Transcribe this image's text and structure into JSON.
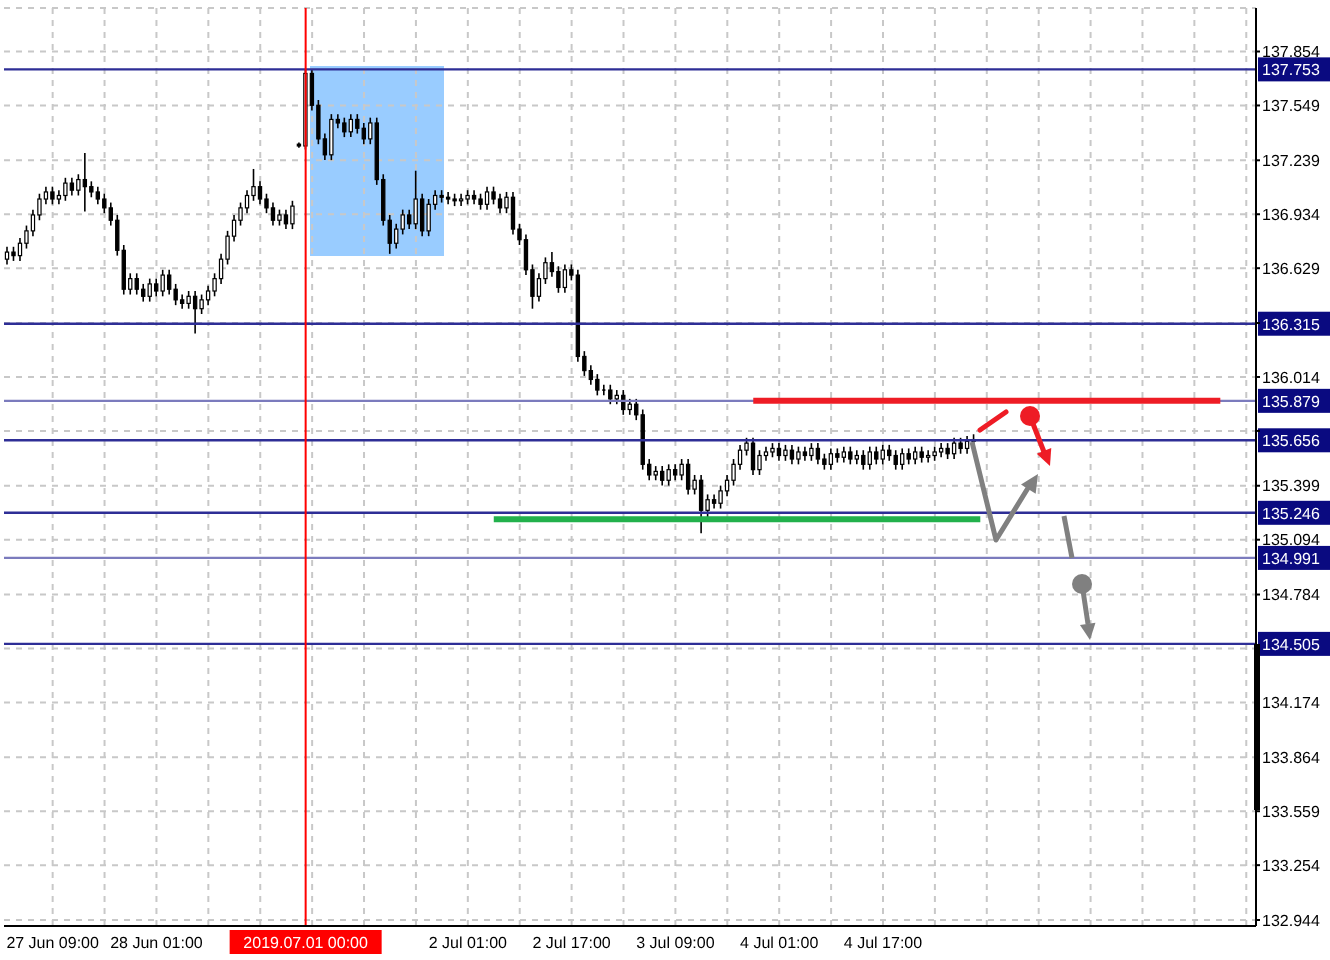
{
  "chart_data": {
    "type": "candlestick",
    "categories": [
      null,
      null,
      null,
      null,
      null,
      null,
      null,
      "27 Jun 09:00",
      null,
      null,
      null,
      null,
      null,
      null,
      null,
      null,
      null,
      null,
      null,
      null,
      null,
      null,
      null,
      "28 Jun 01:00",
      null,
      null,
      null,
      null,
      null,
      null,
      null,
      null,
      null,
      null,
      null,
      null,
      null,
      null,
      null,
      null,
      null,
      null,
      null,
      null,
      null,
      null,
      "2019.07.01 00:00",
      null,
      null,
      null,
      null,
      null,
      null,
      null,
      null,
      null,
      null,
      null,
      null,
      null,
      null,
      null,
      null,
      null,
      null,
      null,
      null,
      null,
      null,
      null,
      null,
      "2 Jul 01:00",
      null,
      null,
      null,
      null,
      null,
      null,
      null,
      null,
      null,
      null,
      null,
      null,
      null,
      null,
      null,
      "2 Jul 17:00",
      null,
      null,
      null,
      null,
      null,
      null,
      null,
      null,
      null,
      null,
      null,
      null,
      null,
      null,
      null,
      "3 Jul 09:00",
      null,
      null,
      null,
      null,
      null,
      null,
      null,
      null,
      null,
      null,
      null,
      null,
      null,
      null,
      null,
      "4 Jul 01:00",
      null,
      null,
      null,
      null,
      null,
      null,
      null,
      null,
      null,
      null,
      null,
      null,
      null,
      null,
      null,
      "4 Jul 17:00",
      null,
      null,
      null,
      null,
      null,
      null,
      null,
      null,
      null,
      null,
      null,
      null,
      null,
      null,
      null,
      null,
      null,
      null,
      null,
      null,
      null,
      null,
      null,
      null,
      null,
      null,
      null,
      null,
      null,
      null,
      null,
      null,
      null,
      null,
      null,
      null,
      null,
      null,
      null,
      null,
      null,
      null,
      null,
      null,
      null,
      null,
      null,
      null,
      null,
      null,
      null,
      null,
      null,
      null,
      null,
      null,
      null
    ],
    "ohlc": [
      [
        136.68,
        136.75,
        136.65,
        136.72
      ],
      [
        136.72,
        136.75,
        136.67,
        136.7
      ],
      [
        136.7,
        136.8,
        136.67,
        136.77
      ],
      [
        136.77,
        136.87,
        136.74,
        136.84
      ],
      [
        136.84,
        136.96,
        136.81,
        136.93
      ],
      [
        136.93,
        137.05,
        136.9,
        137.02
      ],
      [
        137.02,
        137.09,
        136.99,
        137.06
      ],
      [
        137.06,
        137.09,
        136.99,
        137.02
      ],
      [
        137.02,
        137.07,
        136.99,
        137.04
      ],
      [
        137.04,
        137.14,
        137.01,
        137.11
      ],
      [
        137.11,
        137.14,
        137.04,
        137.07
      ],
      [
        137.07,
        137.16,
        137.04,
        137.13
      ],
      [
        137.13,
        137.28,
        136.95,
        137.09
      ],
      [
        137.09,
        137.12,
        137.03,
        137.06
      ],
      [
        137.06,
        137.09,
        136.99,
        137.02
      ],
      [
        137.02,
        137.05,
        136.94,
        136.97
      ],
      [
        136.97,
        137.0,
        136.87,
        136.9
      ],
      [
        136.9,
        136.93,
        136.7,
        136.73
      ],
      [
        136.73,
        136.76,
        136.48,
        136.51
      ],
      [
        136.51,
        136.6,
        136.48,
        136.57
      ],
      [
        136.57,
        136.6,
        136.48,
        136.51
      ],
      [
        136.51,
        136.54,
        136.44,
        136.47
      ],
      [
        136.47,
        136.57,
        136.44,
        136.54
      ],
      [
        136.54,
        136.57,
        136.47,
        136.5
      ],
      [
        136.5,
        136.62,
        136.47,
        136.59
      ],
      [
        136.59,
        136.62,
        136.48,
        136.51
      ],
      [
        136.51,
        136.54,
        136.42,
        136.45
      ],
      [
        136.45,
        136.48,
        136.4,
        136.43
      ],
      [
        136.43,
        136.5,
        136.4,
        136.47
      ],
      [
        136.47,
        136.5,
        136.26,
        136.4
      ],
      [
        136.4,
        136.48,
        136.37,
        136.45
      ],
      [
        136.45,
        136.53,
        136.42,
        136.5
      ],
      [
        136.5,
        136.6,
        136.47,
        136.57
      ],
      [
        136.57,
        136.71,
        136.54,
        136.68
      ],
      [
        136.68,
        136.84,
        136.65,
        136.81
      ],
      [
        136.81,
        136.93,
        136.78,
        136.9
      ],
      [
        136.9,
        137.0,
        136.87,
        136.97
      ],
      [
        136.97,
        137.07,
        136.94,
        137.04
      ],
      [
        137.04,
        137.19,
        137.01,
        137.09
      ],
      [
        137.09,
        137.12,
        136.99,
        137.02
      ],
      [
        137.02,
        137.05,
        136.94,
        136.97
      ],
      [
        136.97,
        137.0,
        136.87,
        136.9
      ],
      [
        136.9,
        136.96,
        136.87,
        136.93
      ],
      [
        136.93,
        136.96,
        136.85,
        136.88
      ],
      [
        136.88,
        137.01,
        136.85,
        136.98
      ],
      [
        137.33,
        137.34,
        137.31,
        137.32
      ],
      [
        137.32,
        137.75,
        137.3,
        137.73
      ],
      [
        137.73,
        137.75,
        137.52,
        137.55
      ],
      [
        137.55,
        137.58,
        137.33,
        137.36
      ],
      [
        137.36,
        137.39,
        137.24,
        137.27
      ],
      [
        137.27,
        137.5,
        137.24,
        137.47
      ],
      [
        137.47,
        137.5,
        137.42,
        137.45
      ],
      [
        137.45,
        137.48,
        137.37,
        137.4
      ],
      [
        137.4,
        137.5,
        137.37,
        137.47
      ],
      [
        137.47,
        137.5,
        137.39,
        137.42
      ],
      [
        137.42,
        137.45,
        137.33,
        137.36
      ],
      [
        137.36,
        137.48,
        137.33,
        137.45
      ],
      [
        137.45,
        137.48,
        137.1,
        137.13
      ],
      [
        137.13,
        137.16,
        136.87,
        136.9
      ],
      [
        136.9,
        136.93,
        136.71,
        136.77
      ],
      [
        136.77,
        136.88,
        136.74,
        136.85
      ],
      [
        136.85,
        136.96,
        136.82,
        136.93
      ],
      [
        136.93,
        136.96,
        136.85,
        136.88
      ],
      [
        136.88,
        137.18,
        136.85,
        137.02
      ],
      [
        137.02,
        137.05,
        136.81,
        136.84
      ],
      [
        136.84,
        137.02,
        136.81,
        136.99
      ],
      [
        136.99,
        137.07,
        136.96,
        137.04
      ],
      [
        137.04,
        137.07,
        137.0,
        137.03
      ],
      [
        137.03,
        137.06,
        136.99,
        137.02
      ],
      [
        137.02,
        137.05,
        136.98,
        137.01
      ],
      [
        137.01,
        137.05,
        136.98,
        137.02
      ],
      [
        137.02,
        137.07,
        136.99,
        137.04
      ],
      [
        137.04,
        137.07,
        136.99,
        137.02
      ],
      [
        137.02,
        137.05,
        136.96,
        136.99
      ],
      [
        136.99,
        137.09,
        136.96,
        137.06
      ],
      [
        137.06,
        137.09,
        136.99,
        137.02
      ],
      [
        137.02,
        137.05,
        136.94,
        136.97
      ],
      [
        136.97,
        137.06,
        136.94,
        137.03
      ],
      [
        137.03,
        137.06,
        136.82,
        136.85
      ],
      [
        136.85,
        136.88,
        136.76,
        136.79
      ],
      [
        136.79,
        136.82,
        136.59,
        136.62
      ],
      [
        136.62,
        136.65,
        136.4,
        136.47
      ],
      [
        136.47,
        136.6,
        136.44,
        136.57
      ],
      [
        136.57,
        136.69,
        136.54,
        136.66
      ],
      [
        136.66,
        136.72,
        136.58,
        136.61
      ],
      [
        136.61,
        136.64,
        136.49,
        136.52
      ],
      [
        136.52,
        136.65,
        136.49,
        136.62
      ],
      [
        136.62,
        136.65,
        136.56,
        136.59
      ],
      [
        136.59,
        136.62,
        136.1,
        136.13
      ],
      [
        136.13,
        136.16,
        136.02,
        136.05
      ],
      [
        136.05,
        136.08,
        135.97,
        136.0
      ],
      [
        136.0,
        136.03,
        135.91,
        135.94
      ],
      [
        135.94,
        135.97,
        135.91,
        135.94
      ],
      [
        135.94,
        135.97,
        135.86,
        135.89
      ],
      [
        135.89,
        135.94,
        135.86,
        135.91
      ],
      [
        135.91,
        135.94,
        135.8,
        135.83
      ],
      [
        135.83,
        135.89,
        135.8,
        135.86
      ],
      [
        135.86,
        135.89,
        135.77,
        135.8
      ],
      [
        135.8,
        135.83,
        135.49,
        135.52
      ],
      [
        135.52,
        135.55,
        135.43,
        135.46
      ],
      [
        135.46,
        135.51,
        135.43,
        135.48
      ],
      [
        135.48,
        135.51,
        135.4,
        135.43
      ],
      [
        135.43,
        135.52,
        135.4,
        135.49
      ],
      [
        135.49,
        135.52,
        135.43,
        135.46
      ],
      [
        135.46,
        135.55,
        135.43,
        135.52
      ],
      [
        135.52,
        135.55,
        135.35,
        135.38
      ],
      [
        135.38,
        135.46,
        135.35,
        135.43
      ],
      [
        135.43,
        135.46,
        135.13,
        135.26
      ],
      [
        135.26,
        135.35,
        135.2,
        135.32
      ],
      [
        135.32,
        135.35,
        135.27,
        135.3
      ],
      [
        135.3,
        135.4,
        135.27,
        135.37
      ],
      [
        135.37,
        135.46,
        135.34,
        135.43
      ],
      [
        135.43,
        135.55,
        135.4,
        135.52
      ],
      [
        135.52,
        135.63,
        135.49,
        135.6
      ],
      [
        135.6,
        135.67,
        135.57,
        135.64
      ],
      [
        135.64,
        135.67,
        135.46,
        135.49
      ],
      [
        135.49,
        135.6,
        135.46,
        135.57
      ],
      [
        135.57,
        135.62,
        135.54,
        135.59
      ],
      [
        135.59,
        135.64,
        135.56,
        135.61
      ],
      [
        135.61,
        135.64,
        135.54,
        135.57
      ],
      [
        135.57,
        135.63,
        135.54,
        135.6
      ],
      [
        135.6,
        135.63,
        135.52,
        135.55
      ],
      [
        135.55,
        135.62,
        135.52,
        135.59
      ],
      [
        135.59,
        135.62,
        135.54,
        135.57
      ],
      [
        135.57,
        135.64,
        135.54,
        135.61
      ],
      [
        135.61,
        135.64,
        135.52,
        135.55
      ],
      [
        135.55,
        135.58,
        135.49,
        135.52
      ],
      [
        135.52,
        135.61,
        135.49,
        135.58
      ],
      [
        135.58,
        135.61,
        135.53,
        135.56
      ],
      [
        135.56,
        135.62,
        135.53,
        135.59
      ],
      [
        135.59,
        135.62,
        135.52,
        135.55
      ],
      [
        135.55,
        135.6,
        135.52,
        135.57
      ],
      [
        135.57,
        135.6,
        135.49,
        135.52
      ],
      [
        135.52,
        135.62,
        135.49,
        135.59
      ],
      [
        135.59,
        135.62,
        135.52,
        135.55
      ],
      [
        135.55,
        135.63,
        135.52,
        135.6
      ],
      [
        135.6,
        135.63,
        135.54,
        135.57
      ],
      [
        135.57,
        135.6,
        135.49,
        135.52
      ],
      [
        135.52,
        135.61,
        135.49,
        135.58
      ],
      [
        135.58,
        135.61,
        135.52,
        135.55
      ],
      [
        135.55,
        135.62,
        135.52,
        135.59
      ],
      [
        135.59,
        135.62,
        135.53,
        135.56
      ],
      [
        135.56,
        135.6,
        135.53,
        135.57
      ],
      [
        135.57,
        135.62,
        135.54,
        135.59
      ],
      [
        135.59,
        135.64,
        135.56,
        135.61
      ],
      [
        135.61,
        135.64,
        135.55,
        135.58
      ],
      [
        135.58,
        135.67,
        135.55,
        135.64
      ],
      [
        135.64,
        135.67,
        135.58,
        135.61
      ],
      [
        135.61,
        135.68,
        135.58,
        135.65
      ],
      [
        135.65,
        135.69,
        135.62,
        135.66
      ],
      null,
      null,
      null,
      null,
      null,
      null,
      null,
      null,
      null,
      null,
      null,
      null,
      null,
      null,
      null,
      null,
      null,
      null,
      null,
      null,
      null,
      null,
      null,
      null,
      null,
      null,
      null,
      null,
      null,
      null,
      null,
      null,
      null,
      null,
      null,
      null,
      null,
      null,
      null,
      null,
      null,
      null,
      null
    ],
    "series": [
      {
        "type": "line",
        "color": "#ee1c25",
        "values": [
          null,
          null,
          null,
          null,
          null,
          null,
          null,
          null,
          null,
          null,
          null,
          null,
          null,
          null,
          null,
          null,
          null,
          null,
          null,
          null,
          null,
          null,
          null,
          null,
          null,
          null,
          null,
          null,
          null,
          null,
          null,
          null,
          null,
          null,
          null,
          null,
          null,
          null,
          null,
          null,
          null,
          null,
          null,
          null,
          null,
          null,
          null,
          null,
          null,
          null,
          null,
          null,
          null,
          null,
          null,
          null,
          null,
          null,
          null,
          null,
          null,
          null,
          null,
          null,
          null,
          null,
          null,
          null,
          null,
          null,
          null,
          null,
          null,
          null,
          null,
          null,
          null,
          null,
          null,
          null,
          null,
          null,
          null,
          null,
          null,
          null,
          null,
          null,
          null,
          null,
          null,
          null,
          null,
          null,
          null,
          null,
          null,
          null,
          null,
          null,
          null,
          null,
          null,
          null,
          null,
          null,
          null,
          null,
          null,
          null,
          null,
          null,
          null,
          null,
          null,
          135.88,
          null,
          null,
          null,
          null,
          null,
          null,
          null,
          null,
          null,
          null,
          null,
          null,
          null,
          null,
          null,
          null,
          null,
          null,
          null,
          null,
          null,
          null,
          null,
          null,
          null,
          null,
          null,
          null,
          null,
          null,
          null,
          null,
          null,
          null,
          null,
          null,
          null,
          null,
          null,
          null,
          null,
          null,
          null,
          null,
          null,
          null,
          null,
          null,
          null,
          null,
          null,
          null,
          null,
          null,
          null,
          null,
          null,
          null,
          null,
          null,
          null,
          null,
          null,
          null,
          null,
          null,
          null,
          null,
          null,
          null,
          null,
          135.88,
          null,
          null,
          null,
          null,
          null
        ]
      },
      {
        "type": "line",
        "color": "#22b14c",
        "values": [
          null,
          null,
          null,
          null,
          null,
          null,
          null,
          null,
          null,
          null,
          null,
          null,
          null,
          null,
          null,
          null,
          null,
          null,
          null,
          null,
          null,
          null,
          null,
          null,
          null,
          null,
          null,
          null,
          null,
          null,
          null,
          null,
          null,
          null,
          null,
          null,
          null,
          null,
          null,
          null,
          null,
          null,
          null,
          null,
          null,
          null,
          null,
          null,
          null,
          null,
          null,
          null,
          null,
          null,
          null,
          null,
          null,
          null,
          null,
          null,
          null,
          null,
          null,
          null,
          null,
          null,
          null,
          null,
          null,
          null,
          null,
          null,
          null,
          null,
          null,
          135.21,
          null,
          null,
          null,
          null,
          null,
          null,
          null,
          null,
          null,
          null,
          null,
          null,
          null,
          null,
          null,
          null,
          null,
          null,
          null,
          null,
          null,
          null,
          null,
          null,
          null,
          null,
          null,
          null,
          null,
          null,
          null,
          null,
          null,
          null,
          null,
          null,
          null,
          null,
          null,
          null,
          null,
          null,
          null,
          null,
          null,
          null,
          null,
          null,
          null,
          null,
          null,
          null,
          null,
          null,
          null,
          null,
          null,
          null,
          null,
          null,
          null,
          null,
          null,
          null,
          null,
          null,
          null,
          null,
          null,
          null,
          null,
          null,
          null,
          null,
          135.21,
          null,
          null,
          null,
          null,
          null,
          null,
          null,
          null,
          null,
          null,
          null,
          null,
          null,
          null,
          null,
          null,
          null,
          null,
          null,
          null,
          null,
          null,
          null,
          null,
          null,
          null,
          null,
          null,
          null,
          null,
          null,
          null,
          null,
          null,
          null,
          null,
          null,
          null,
          null,
          null,
          null,
          null
        ]
      }
    ],
    "ylim": [
      132.91,
      138.1
    ],
    "yticks": [
      137.854,
      137.549,
      137.239,
      136.934,
      136.629,
      {
        "value": 136.319,
        "label": null
      },
      136.014,
      {
        "value": 135.709,
        "label": null
      },
      135.399,
      135.094,
      134.784,
      {
        "value": 134.479,
        "label": null
      },
      134.174,
      133.864,
      133.559,
      133.254,
      132.944
    ],
    "grid": true,
    "ref_lines": [
      {
        "axis": "y",
        "value": 137.753,
        "label": "137.753",
        "color": "#2e2e96"
      },
      {
        "axis": "y",
        "value": 136.315,
        "label": "136.315",
        "color": "#2e2e96"
      },
      {
        "axis": "y",
        "value": 135.879,
        "label": "135.879",
        "color": "#7b7bbd"
      },
      {
        "axis": "y",
        "value": 135.656,
        "label": "135.656",
        "color": "#2e2e96"
      },
      {
        "axis": "y",
        "value": 135.246,
        "label": "135.246",
        "color": "#2e2e96"
      },
      {
        "axis": "y",
        "value": 134.991,
        "label": "134.991",
        "color": "#7b7bbd"
      },
      {
        "axis": "y",
        "value": 134.505,
        "label": "134.505",
        "color": "#2e2e96"
      },
      {
        "axis": "x",
        "value": "2019.07.01 00:00",
        "color": "#ff0000"
      }
    ]
  }
}
